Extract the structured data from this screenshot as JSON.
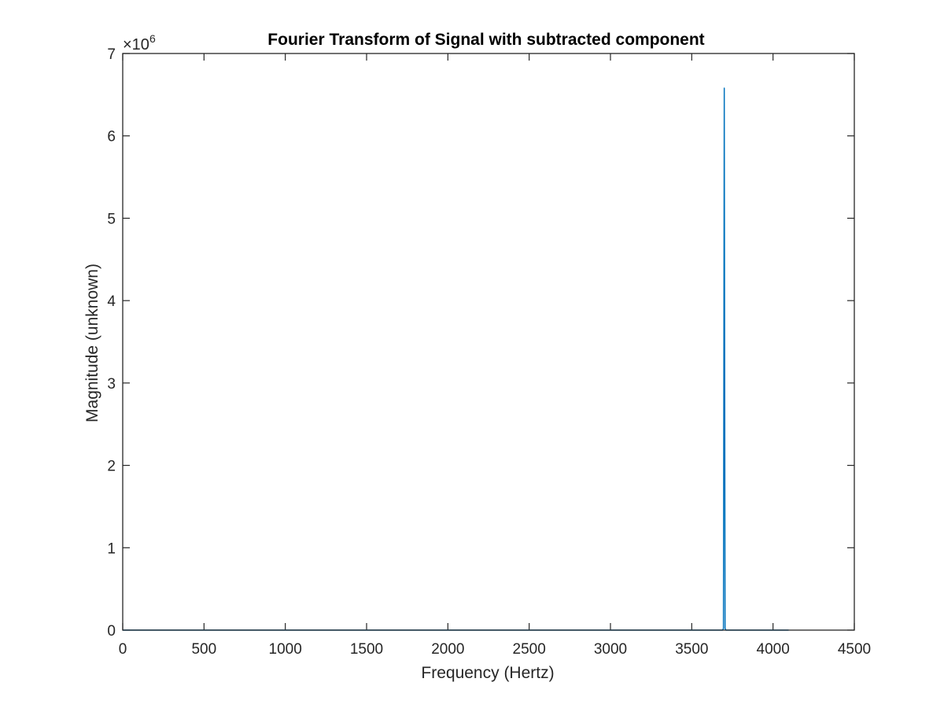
{
  "chart_data": {
    "type": "line",
    "title": "Fourier Transform of Signal with subtracted component",
    "xlabel": "Frequency (Hertz)",
    "ylabel": "Magnitude (unknown)",
    "xlim": [
      0,
      4500
    ],
    "ylim": [
      0,
      7
    ],
    "y_multiplier_base": "×10",
    "y_multiplier_exponent": "6",
    "x_ticks": [
      0,
      500,
      1000,
      1500,
      2000,
      2500,
      3000,
      3500,
      4000,
      4500
    ],
    "x_tick_labels": [
      "0",
      "500",
      "1000",
      "1500",
      "2000",
      "2500",
      "3000",
      "3500",
      "4000",
      "4500"
    ],
    "y_ticks": [
      0,
      1,
      2,
      3,
      4,
      5,
      6,
      7
    ],
    "y_tick_labels": [
      "0",
      "1",
      "2",
      "3",
      "4",
      "5",
      "6",
      "7"
    ],
    "grid": false,
    "series": [
      {
        "color": "#0072BD",
        "x": [
          0,
          3690,
          3695,
          3700,
          3705,
          3710,
          4096
        ],
        "y": [
          0,
          0,
          0.02,
          6.58,
          0.02,
          0,
          0
        ]
      }
    ]
  }
}
